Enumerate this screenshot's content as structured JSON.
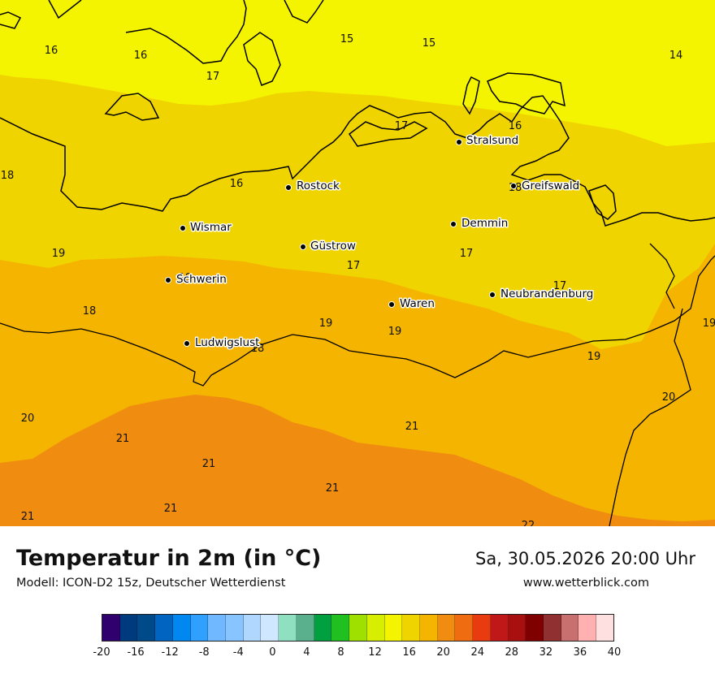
{
  "header": {
    "title": "Temperatur in 2m (in °C)",
    "model": "Modell: ICON-D2 15z, Deutscher Wetterdienst",
    "datetime": "Sa, 30.05.2026 20:00 Uhr",
    "website": "www.wetterblick.com"
  },
  "cities": [
    {
      "name": "Stralsund"
    },
    {
      "name": "Greifswald"
    },
    {
      "name": "Rostock"
    },
    {
      "name": "Wismar"
    },
    {
      "name": "Demmin"
    },
    {
      "name": "Güstrow"
    },
    {
      "name": "Schwerin"
    },
    {
      "name": "Neubrandenburg"
    },
    {
      "name": "Waren"
    },
    {
      "name": "Ludwigslust"
    }
  ],
  "grid_values": [
    "16",
    "16",
    "17",
    "15",
    "15",
    "14",
    "17",
    "16",
    "18",
    "16",
    "18",
    "19",
    "17",
    "17",
    "19",
    "18",
    "17",
    "19",
    "19",
    "18",
    "19",
    "19",
    "20",
    "20",
    "21",
    "21",
    "21",
    "21",
    "21",
    "21",
    "22"
  ],
  "legend": {
    "colors": [
      "#30006e",
      "#003a7e",
      "#004a8a",
      "#0064c0",
      "#0088f0",
      "#30a0ff",
      "#70b8ff",
      "#88c4ff",
      "#b0d8ff",
      "#d0e8ff",
      "#8ee0c0",
      "#5ab08c",
      "#00a040",
      "#20c020",
      "#a0e000",
      "#d8ee00",
      "#f4f400",
      "#f0d400",
      "#f4b400",
      "#f08c10",
      "#f06c10",
      "#e83c10",
      "#c01818",
      "#a81010",
      "#800000",
      "#903030",
      "#c87070",
      "#ffb0b0",
      "#ffe0e0"
    ],
    "tick_labels": [
      "-20",
      "-16",
      "-12",
      "-8",
      "-4",
      "0",
      "4",
      "8",
      "12",
      "16",
      "20",
      "24",
      "28",
      "32",
      "36",
      "40"
    ]
  },
  "map_colors": {
    "t14_16": "#f4f400",
    "t16_18": "#f0d400",
    "t18_20": "#f4b400",
    "t20_22": "#f08c10"
  }
}
